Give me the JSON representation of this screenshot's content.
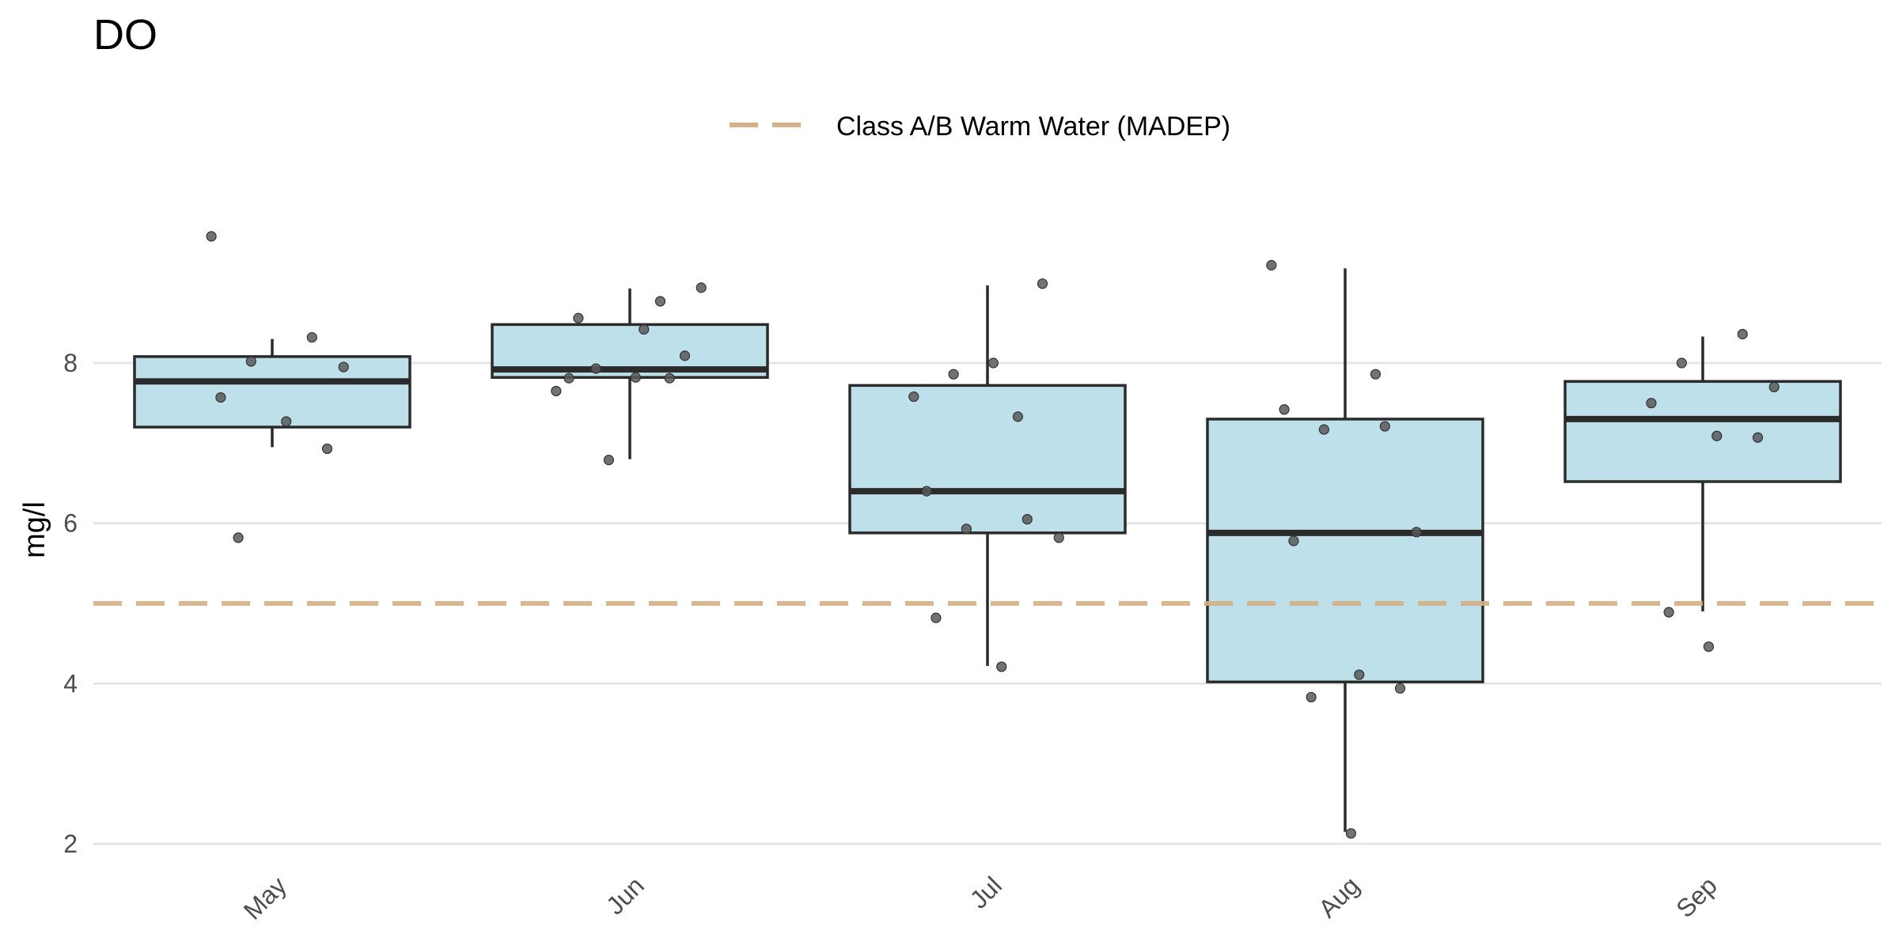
{
  "chart_data": {
    "type": "box",
    "title": "DO",
    "xlabel": "",
    "ylabel": "mg/l",
    "ylim": [
      1.8,
      10.8
    ],
    "yticks": [
      2,
      4,
      6,
      8
    ],
    "grid": true,
    "legend_placement": "top",
    "categories": [
      "May",
      "Jun",
      "Jul",
      "Aug",
      "Sep"
    ],
    "boxes": [
      {
        "category": "May",
        "whisker_low": 6.95,
        "q1": 7.2,
        "median": 7.77,
        "q3": 8.08,
        "whisker_high": 8.3
      },
      {
        "category": "Jun",
        "whisker_low": 6.8,
        "q1": 7.82,
        "median": 7.92,
        "q3": 8.48,
        "whisker_high": 8.93
      },
      {
        "category": "Jul",
        "whisker_low": 4.22,
        "q1": 5.88,
        "median": 6.4,
        "q3": 7.72,
        "whisker_high": 8.97
      },
      {
        "category": "Aug",
        "whisker_low": 2.15,
        "q1": 4.02,
        "median": 5.88,
        "q3": 7.3,
        "whisker_high": 9.18
      },
      {
        "category": "Sep",
        "whisker_low": 4.9,
        "q1": 6.52,
        "median": 7.3,
        "q3": 7.77,
        "whisker_high": 8.33
      }
    ],
    "points": [
      {
        "category": "May",
        "values": [
          9.58,
          8.32,
          8.02,
          7.95,
          7.57,
          7.27,
          6.93,
          5.82
        ]
      },
      {
        "category": "Jun",
        "values": [
          8.94,
          8.56,
          8.42,
          8.09,
          7.93,
          7.82,
          7.65,
          8.77,
          7.81,
          7.81,
          6.79
        ]
      },
      {
        "category": "Jul",
        "values": [
          8.99,
          7.86,
          8.0,
          7.58,
          7.33,
          6.4,
          6.05,
          5.93,
          5.82,
          4.82,
          4.21
        ]
      },
      {
        "category": "Aug",
        "values": [
          9.22,
          7.86,
          7.42,
          7.21,
          7.17,
          5.89,
          5.78,
          4.11,
          3.94,
          3.83,
          2.13
        ]
      },
      {
        "category": "Sep",
        "values": [
          8.36,
          8.0,
          7.7,
          7.5,
          7.09,
          7.07,
          4.89,
          4.46
        ]
      }
    ],
    "reference_lines": [
      {
        "name": "Class A/B Warm Water (MADEP)",
        "value": 5,
        "style": "dashed",
        "color": "#d4b186"
      }
    ],
    "colors": {
      "box_fill": "#bde0ea",
      "box_stroke": "#2b2b2b",
      "point_fill": "#595959",
      "grid": "#e6e6e6"
    }
  }
}
